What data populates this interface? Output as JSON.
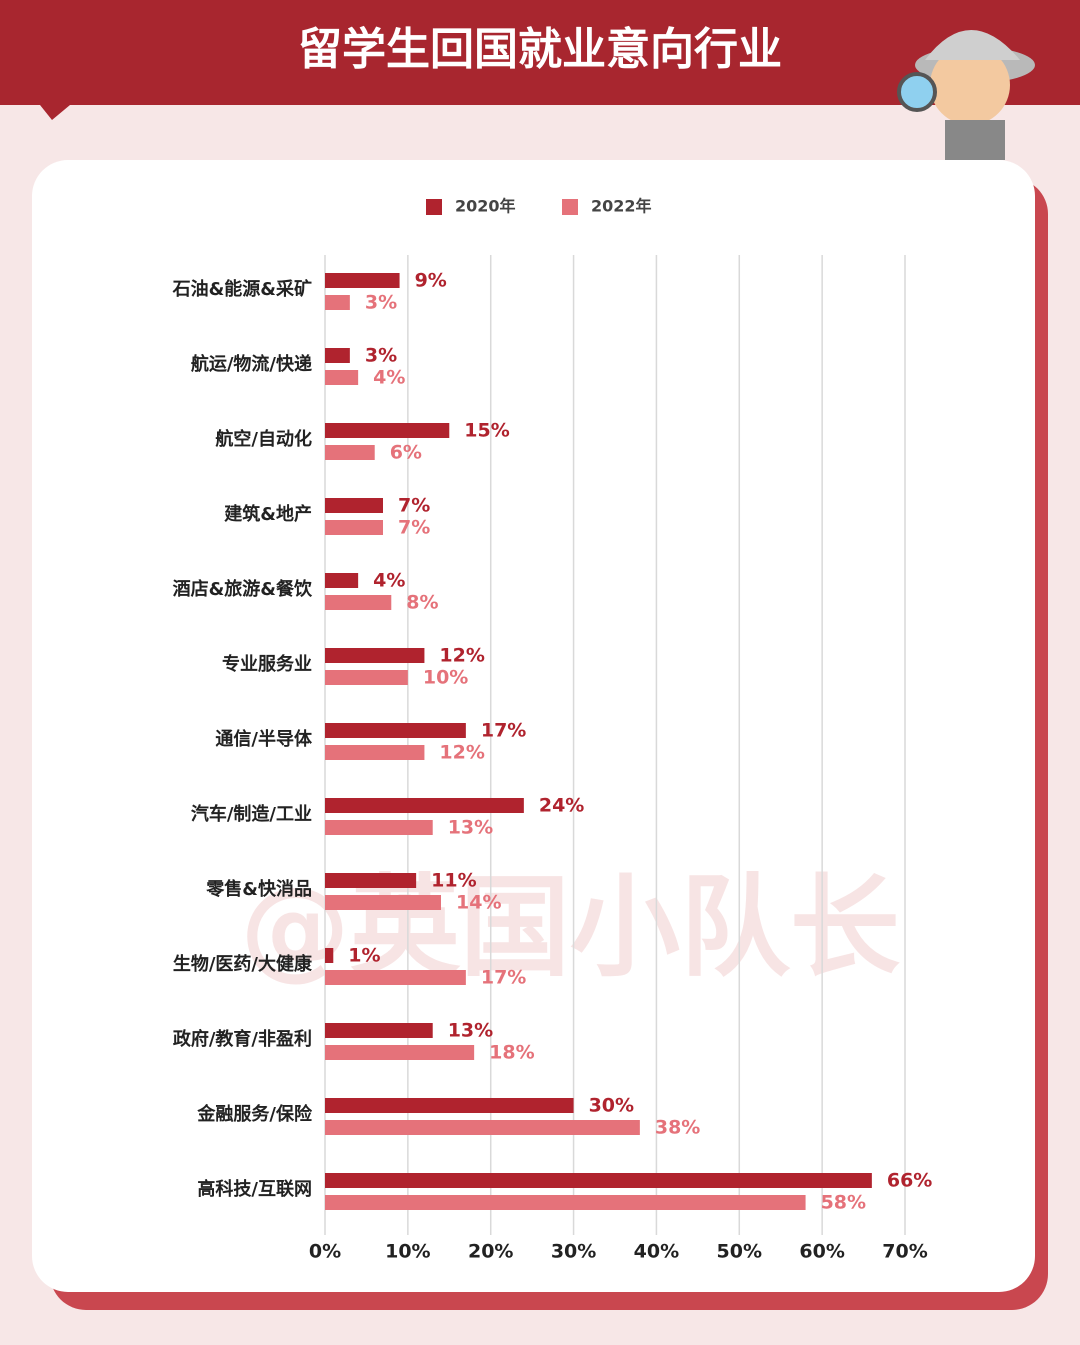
{
  "chart_data": {
    "type": "hbar",
    "title": "留学生回国就业意向行业",
    "watermark": "@英国小队长",
    "categories": [
      "石油&能源&采矿",
      "航运/物流/快递",
      "航空/自动化",
      "建筑&地产",
      "酒店&旅游&餐饮",
      "专业服务业",
      "通信/半导体",
      "汽车/制造/工业",
      "零售&快消品",
      "生物/医药/大健康",
      "政府/教育/非盈利",
      "金融服务/保险",
      "高科技/互联网"
    ],
    "series": [
      {
        "name": "2020年",
        "color": "#b0232e",
        "values": [
          9,
          3,
          15,
          7,
          4,
          12,
          17,
          24,
          11,
          1,
          13,
          30,
          66
        ],
        "value_labels": [
          "9%",
          "3%",
          "15%",
          "7%",
          "4%",
          "12%",
          "17%",
          "24%",
          "11%",
          "1%",
          "13%",
          "30%",
          "66%"
        ]
      },
      {
        "name": "2022年",
        "color": "#e5727a",
        "values": [
          3,
          4,
          6,
          7,
          8,
          10,
          12,
          13,
          14,
          17,
          18,
          38,
          58
        ],
        "value_labels": [
          "3%",
          "4%",
          "6%",
          "7%",
          "8%",
          "10%",
          "12%",
          "13%",
          "14%",
          "17%",
          "18%",
          "38%",
          "58%"
        ]
      }
    ],
    "xlim": [
      0,
      70
    ],
    "xticks": [
      {
        "value": 0,
        "label": "0%"
      },
      {
        "value": 10,
        "label": "10%"
      },
      {
        "value": 20,
        "label": "20%"
      },
      {
        "value": 30,
        "label": "30%"
      },
      {
        "value": 40,
        "label": "40%"
      },
      {
        "value": 50,
        "label": "50%"
      },
      {
        "value": 60,
        "label": "60%"
      },
      {
        "value": 70,
        "label": "70%"
      }
    ],
    "grid": true
  }
}
